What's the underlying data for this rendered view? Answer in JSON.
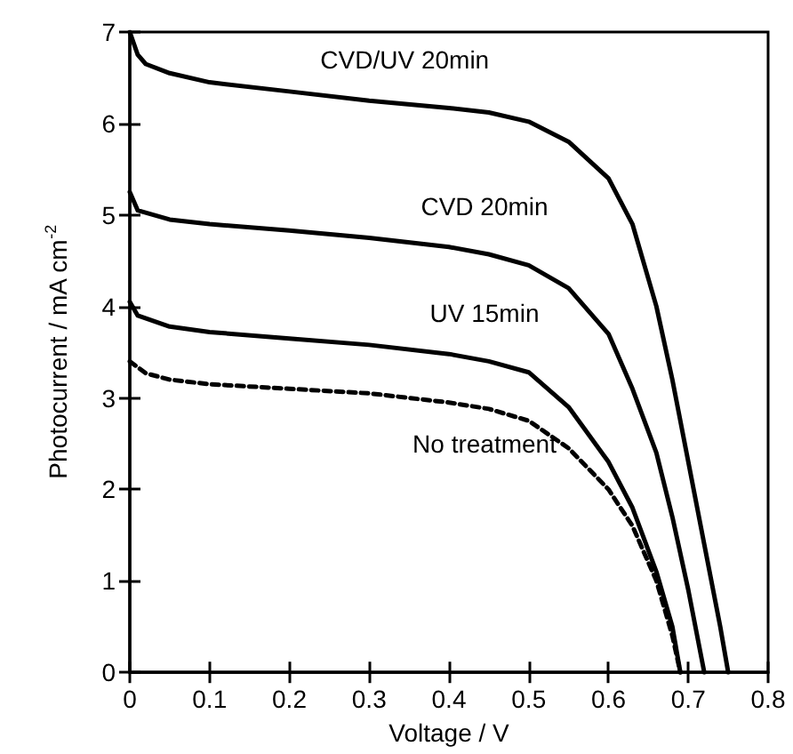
{
  "chart_data": {
    "type": "line",
    "xlabel": "Voltage / V",
    "ylabel": "Photocurrent / mA cm$^{-2}$",
    "xlim": [
      0,
      0.8
    ],
    "xticks": [
      0,
      0.1,
      0.2,
      0.3,
      0.4,
      0.5,
      0.6,
      0.7,
      0.8
    ],
    "ylim": [
      0,
      7
    ],
    "yticks": [
      0,
      1,
      2,
      3,
      4,
      5,
      6,
      7
    ],
    "grid": false,
    "marker": "none",
    "legend": false,
    "series": [
      {
        "name": "CVD/UV 20min",
        "color": "#000000",
        "line_style": "solid",
        "x": [
          0,
          0.01,
          0.02,
          0.05,
          0.1,
          0.2,
          0.3,
          0.4,
          0.45,
          0.5,
          0.55,
          0.6,
          0.63,
          0.66,
          0.68,
          0.7,
          0.72,
          0.74,
          0.75
        ],
        "values": [
          7.0,
          6.75,
          6.65,
          6.55,
          6.45,
          6.35,
          6.25,
          6.17,
          6.12,
          6.02,
          5.8,
          5.4,
          4.9,
          4.0,
          3.2,
          2.3,
          1.4,
          0.5,
          0
        ]
      },
      {
        "name": "CVD 20min",
        "color": "#000000",
        "line_style": "solid",
        "x": [
          0,
          0.01,
          0.05,
          0.1,
          0.2,
          0.3,
          0.4,
          0.45,
          0.5,
          0.55,
          0.6,
          0.63,
          0.66,
          0.68,
          0.7,
          0.72
        ],
        "values": [
          5.25,
          5.05,
          4.95,
          4.9,
          4.83,
          4.75,
          4.65,
          4.57,
          4.45,
          4.2,
          3.7,
          3.1,
          2.4,
          1.7,
          0.9,
          0
        ]
      },
      {
        "name": "UV 15min",
        "color": "#000000",
        "line_style": "solid",
        "x": [
          0,
          0.01,
          0.05,
          0.1,
          0.2,
          0.3,
          0.4,
          0.45,
          0.5,
          0.55,
          0.6,
          0.63,
          0.66,
          0.68,
          0.69
        ],
        "values": [
          4.05,
          3.9,
          3.78,
          3.72,
          3.65,
          3.58,
          3.48,
          3.4,
          3.28,
          2.9,
          2.3,
          1.8,
          1.1,
          0.5,
          0
        ]
      },
      {
        "name": "No treatment",
        "color": "#000000",
        "line_style": "dashed",
        "x": [
          0,
          0.02,
          0.05,
          0.1,
          0.2,
          0.3,
          0.4,
          0.45,
          0.5,
          0.55,
          0.6,
          0.63,
          0.66,
          0.68,
          0.69
        ],
        "values": [
          3.4,
          3.27,
          3.2,
          3.15,
          3.1,
          3.05,
          2.95,
          2.88,
          2.75,
          2.45,
          2.0,
          1.6,
          1.0,
          0.4,
          0
        ]
      }
    ]
  }
}
